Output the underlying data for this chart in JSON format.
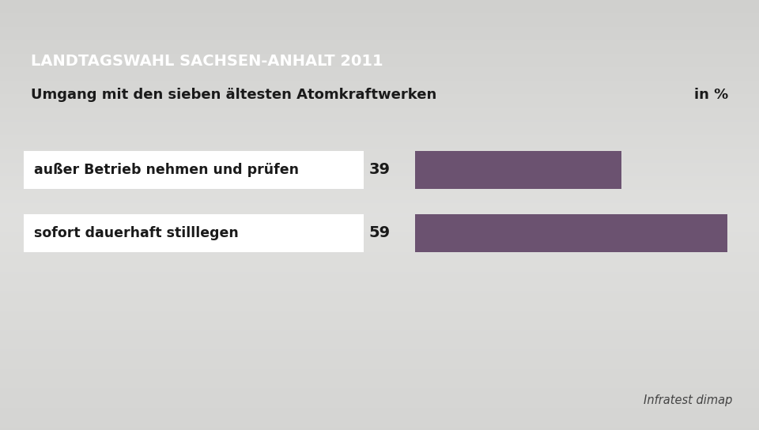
{
  "title_banner": "LANDTAGSWAHL SACHSEN-ANHALT 2011",
  "subtitle": "Umgang mit den sieben ältesten Atomkraftwerken",
  "subtitle_right": "in %",
  "categories": [
    "außer Betrieb nehmen und prüfen",
    "sofort dauerhaft stilllegen"
  ],
  "values": [
    39,
    59
  ],
  "bar_color": "#6b5270",
  "banner_color": "#1a3566",
  "banner_text_color": "#ffffff",
  "text_color": "#1a1a1a",
  "label_box_color": "#ffffff",
  "source": "Infratest dimap",
  "bg_color": "#d5d5d0",
  "white_strip_color": "#f0f0ed"
}
